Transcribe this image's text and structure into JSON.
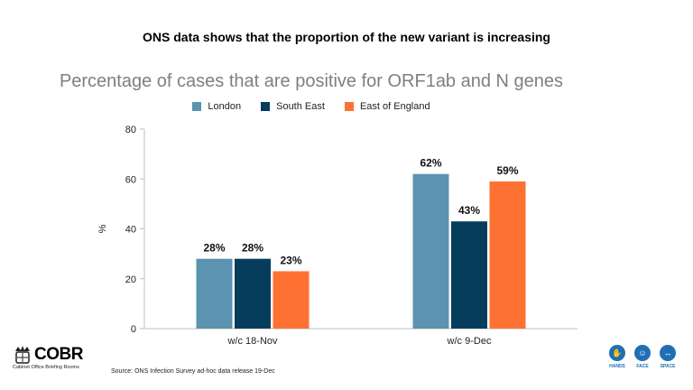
{
  "headline": "ONS data shows that the proportion of the new variant is increasing",
  "source": "Source: ONS Infection Survey ad-hoc data release 19-Dec",
  "logo": {
    "title": "COBR",
    "subtitle": "Cabinet Office Briefing Rooms"
  },
  "footer_icons": [
    {
      "label": "HANDS",
      "icon": "hands-icon"
    },
    {
      "label": "FACE",
      "icon": "face-mask-icon"
    },
    {
      "label": "SPACE",
      "icon": "distance-icon"
    }
  ],
  "colors": {
    "London": "#5b93b1",
    "South East": "#063d5c",
    "East of England": "#ff7133",
    "icon_blue": "#1f6fb5"
  },
  "chart_data": {
    "type": "bar",
    "title": "Percentage of cases that are positive for ORF1ab and N genes",
    "categories": [
      "w/c 18-Nov",
      "w/c 9-Dec"
    ],
    "series": [
      {
        "name": "London",
        "values": [
          28,
          62
        ],
        "labels": [
          "28%",
          "62%"
        ]
      },
      {
        "name": "South East",
        "values": [
          28,
          43
        ],
        "labels": [
          "28%",
          "43%"
        ]
      },
      {
        "name": "East of England",
        "values": [
          23,
          59
        ],
        "labels": [
          "23%",
          "59%"
        ]
      }
    ],
    "ylabel": "%",
    "ylim": [
      0,
      80
    ],
    "yticks": [
      "0",
      "20",
      "40",
      "60",
      "80"
    ],
    "legend_position": "top",
    "grid": false
  }
}
